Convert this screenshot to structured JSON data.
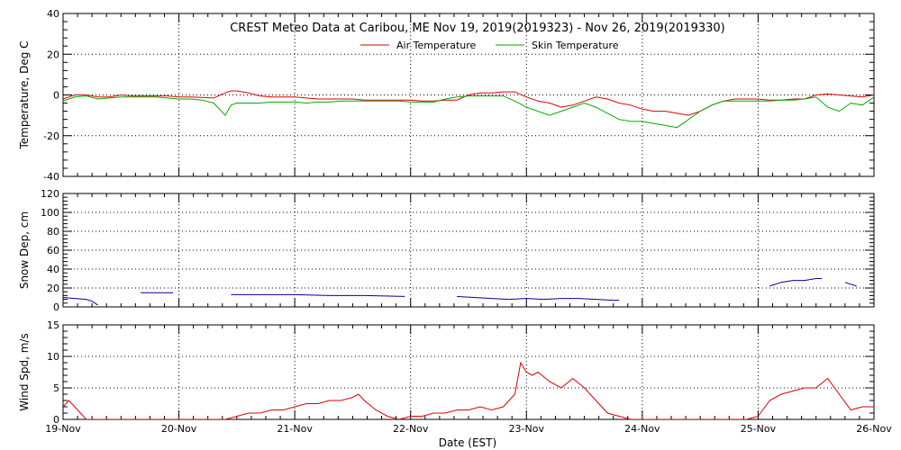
{
  "title": "CREST Meteo Data at Caribou, ME   Nov 19, 2019(2019323) - Nov 26, 2019(2019330)",
  "xlabel": "Date (EST)",
  "x_ticks": [
    "19-Nov",
    "20-Nov",
    "21-Nov",
    "22-Nov",
    "23-Nov",
    "24-Nov",
    "25-Nov",
    "26-Nov"
  ],
  "colors": {
    "air": "#dd0000",
    "skin": "#00aa00",
    "snow": "#000099",
    "wind": "#dd0000",
    "grid": "#000000"
  },
  "chart_data": [
    {
      "type": "line",
      "ylabel": "Temperature, Deg C",
      "ylim": [
        -40,
        40
      ],
      "y_ticks": [
        40,
        20,
        0,
        -20,
        -40
      ],
      "xlim": [
        0,
        7
      ],
      "grid": true,
      "legend": "top-center",
      "series": [
        {
          "name": "Air Temperature",
          "color": "#dd0000",
          "x": [
            0,
            0.1,
            0.2,
            0.3,
            0.4,
            0.5,
            0.6,
            0.7,
            0.8,
            0.9,
            1.0,
            1.1,
            1.2,
            1.3,
            1.4,
            1.45,
            1.5,
            1.6,
            1.7,
            1.8,
            1.9,
            2.0,
            2.1,
            2.2,
            2.3,
            2.4,
            2.5,
            2.6,
            2.7,
            2.8,
            2.9,
            3.0,
            3.1,
            3.2,
            3.3,
            3.4,
            3.5,
            3.6,
            3.7,
            3.8,
            3.9,
            4.0,
            4.1,
            4.2,
            4.3,
            4.4,
            4.5,
            4.6,
            4.7,
            4.8,
            4.9,
            5.0,
            5.1,
            5.2,
            5.3,
            5.4,
            5.5,
            5.6,
            5.7,
            5.8,
            5.9,
            6.0,
            6.1,
            6.2,
            6.3,
            6.4,
            6.5,
            6.6,
            6.7,
            6.8,
            6.9,
            7.0
          ],
          "values": [
            -2,
            0,
            0,
            -1,
            -1,
            0,
            -0.5,
            -0.5,
            -0.5,
            -0.5,
            -1,
            -1,
            -1.2,
            -1.5,
            1,
            2,
            2,
            1,
            -0.5,
            -1,
            -1,
            -1,
            -1.5,
            -2,
            -2,
            -2,
            -2,
            -2.5,
            -2.5,
            -2.5,
            -2.5,
            -2.5,
            -3,
            -3,
            -2.5,
            -2.5,
            0,
            1,
            1,
            1.5,
            1.5,
            -1,
            -3,
            -4,
            -6,
            -5,
            -3,
            -1,
            -2,
            -4,
            -5,
            -7,
            -8,
            -8,
            -9,
            -10,
            -8,
            -5,
            -3,
            -2,
            -2,
            -2,
            -2.5,
            -2.5,
            -2,
            -2,
            0,
            0.5,
            0,
            -0.5,
            -1,
            0
          ]
        },
        {
          "name": "Skin Temperature",
          "color": "#00aa00",
          "x": [
            0,
            0.1,
            0.2,
            0.3,
            0.4,
            0.5,
            0.6,
            0.7,
            0.8,
            0.9,
            1.0,
            1.1,
            1.2,
            1.3,
            1.35,
            1.4,
            1.45,
            1.5,
            1.6,
            1.7,
            1.8,
            1.9,
            2.0,
            2.1,
            2.2,
            2.3,
            2.4,
            2.5,
            2.6,
            2.7,
            2.8,
            2.9,
            3.0,
            3.1,
            3.2,
            3.3,
            3.4,
            3.5,
            3.6,
            3.7,
            3.8,
            3.9,
            4.0,
            4.1,
            4.2,
            4.3,
            4.4,
            4.5,
            4.6,
            4.7,
            4.8,
            4.9,
            5.0,
            5.1,
            5.2,
            5.3,
            5.4,
            5.5,
            5.6,
            5.7,
            5.8,
            5.9,
            6.0,
            6.1,
            6.2,
            6.3,
            6.4,
            6.5,
            6.6,
            6.7,
            6.8,
            6.9,
            7.0
          ],
          "values": [
            -3,
            -1,
            -0.5,
            -2,
            -1.5,
            -1,
            -1,
            -1,
            -1,
            -1.5,
            -2,
            -2,
            -2.5,
            -4,
            -7,
            -10,
            -5,
            -4,
            -4,
            -4,
            -3.5,
            -3.5,
            -3.5,
            -4,
            -3.5,
            -3.5,
            -3,
            -3,
            -3,
            -3,
            -3,
            -3,
            -3.5,
            -3.5,
            -3.5,
            -2,
            -1,
            -0.5,
            -0.5,
            -0.5,
            -0.5,
            -3,
            -6,
            -8,
            -10,
            -8,
            -6,
            -4,
            -6,
            -9,
            -12,
            -13,
            -13,
            -14,
            -15,
            -16,
            -12,
            -8,
            -5,
            -3,
            -3,
            -3,
            -3,
            -3,
            -2.5,
            -2.5,
            -2,
            -1,
            -6,
            -8,
            -4,
            -5,
            -1
          ]
        }
      ]
    },
    {
      "type": "line",
      "ylabel": "Snow Dep, cm",
      "ylim": [
        0,
        120
      ],
      "y_ticks": [
        120,
        100,
        80,
        60,
        40,
        20,
        0
      ],
      "xlim": [
        0,
        7
      ],
      "grid": true,
      "series": [
        {
          "name": "",
          "color": "#000099",
          "segments": [
            {
              "x": [
                0,
                0.1,
                0.2,
                0.25,
                0.3
              ],
              "values": [
                10,
                9,
                8,
                6,
                2
              ]
            },
            {
              "x": [
                0.67,
                0.75,
                0.85,
                0.95
              ],
              "values": [
                15,
                15,
                15,
                15
              ]
            },
            {
              "x": [
                1.45,
                1.7,
                2.0,
                2.3,
                2.6,
                2.95
              ],
              "values": [
                13,
                13,
                13,
                12,
                12,
                11
              ]
            },
            {
              "x": [
                3.4,
                3.55,
                3.7,
                3.85,
                4.0,
                4.15,
                4.3,
                4.45,
                4.6,
                4.75,
                4.8
              ],
              "values": [
                11,
                10,
                9,
                8,
                9,
                8,
                9,
                9,
                8,
                7,
                7
              ]
            },
            {
              "x": [
                6.1,
                6.2,
                6.3,
                6.4,
                6.5,
                6.55
              ],
              "values": [
                22,
                26,
                28,
                28,
                30,
                30
              ]
            },
            {
              "x": [
                6.75,
                6.8,
                6.85
              ],
              "values": [
                26,
                24,
                22
              ]
            },
            {
              "x": [
                7.0,
                7.1,
                7.2,
                7.35
              ],
              "values": [
                22,
                22,
                22,
                22
              ]
            }
          ]
        }
      ]
    },
    {
      "type": "line",
      "ylabel": "Wind Spd, m/s",
      "ylim": [
        0,
        15
      ],
      "y_ticks": [
        15,
        10,
        5,
        0
      ],
      "xlim": [
        0,
        7
      ],
      "grid": true,
      "series": [
        {
          "name": "",
          "color": "#dd0000",
          "x": [
            0,
            0.05,
            0.1,
            0.15,
            0.2,
            1.4,
            1.5,
            1.6,
            1.7,
            1.8,
            1.9,
            2.0,
            2.1,
            2.2,
            2.3,
            2.4,
            2.5,
            2.55,
            2.6,
            2.7,
            2.8,
            2.9,
            3.0,
            3.1,
            3.2,
            3.3,
            3.4,
            3.5,
            3.6,
            3.7,
            3.8,
            3.9,
            3.95,
            4.0,
            4.05,
            4.1,
            4.2,
            4.3,
            4.4,
            4.5,
            4.6,
            4.7,
            4.8,
            4.9,
            5.0,
            5.1,
            5.2,
            5.3,
            5.4,
            5.5,
            5.6,
            5.7,
            5.8,
            5.9,
            6.0,
            6.1,
            6.2,
            6.3,
            6.4,
            6.5,
            6.6,
            6.7,
            6.8,
            6.9,
            7.0
          ],
          "values": [
            2,
            3,
            2,
            1,
            0,
            0,
            0.5,
            1,
            1,
            1.5,
            1.5,
            2,
            2.5,
            2.5,
            3,
            3,
            3.5,
            4,
            3,
            1.5,
            0.5,
            0,
            0.5,
            0.5,
            1,
            1,
            1.5,
            1.5,
            2,
            1.5,
            2,
            4,
            9,
            7.5,
            7,
            7.5,
            6,
            5,
            6.5,
            5,
            3,
            1,
            0.5,
            0,
            0,
            0,
            0,
            0,
            0,
            0,
            0,
            0,
            0,
            0,
            0.5,
            3,
            4,
            4.5,
            5,
            5,
            6.5,
            4,
            1.5,
            2,
            2
          ]
        }
      ]
    }
  ]
}
